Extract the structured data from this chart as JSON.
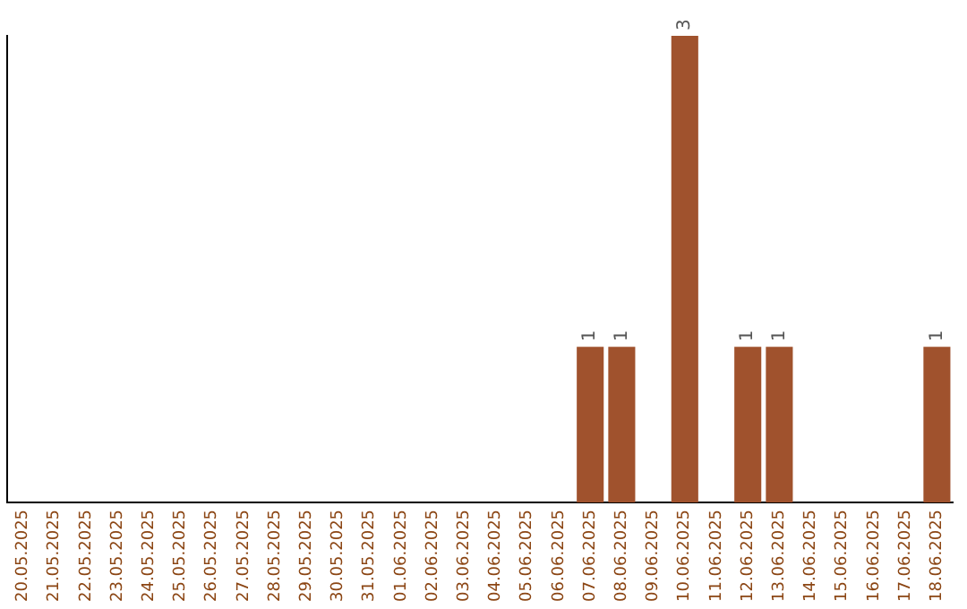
{
  "chart_data": {
    "type": "bar",
    "categories": [
      "20.05.2025",
      "21.05.2025",
      "22.05.2025",
      "23.05.2025",
      "24.05.2025",
      "25.05.2025",
      "26.05.2025",
      "27.05.2025",
      "28.05.2025",
      "29.05.2025",
      "30.05.2025",
      "31.05.2025",
      "01.06.2025",
      "02.06.2025",
      "03.06.2025",
      "04.06.2025",
      "05.06.2025",
      "06.06.2025",
      "07.06.2025",
      "08.06.2025",
      "09.06.2025",
      "10.06.2025",
      "11.06.2025",
      "12.06.2025",
      "13.06.2025",
      "14.06.2025",
      "15.06.2025",
      "16.06.2025",
      "17.06.2025",
      "18.06.2025"
    ],
    "values": [
      null,
      null,
      null,
      null,
      null,
      null,
      null,
      null,
      null,
      null,
      null,
      null,
      null,
      null,
      null,
      null,
      null,
      null,
      1,
      1,
      null,
      3,
      null,
      1,
      1,
      null,
      null,
      null,
      null,
      1
    ],
    "value_labels": [
      null,
      null,
      null,
      null,
      null,
      null,
      null,
      null,
      null,
      null,
      null,
      null,
      null,
      null,
      null,
      null,
      null,
      null,
      "1",
      "1",
      null,
      "3",
      null,
      "1",
      "1",
      null,
      null,
      null,
      null,
      "1"
    ],
    "color": "#a0522d",
    "grid": false,
    "legend": false,
    "tick_labels": "x"
  }
}
